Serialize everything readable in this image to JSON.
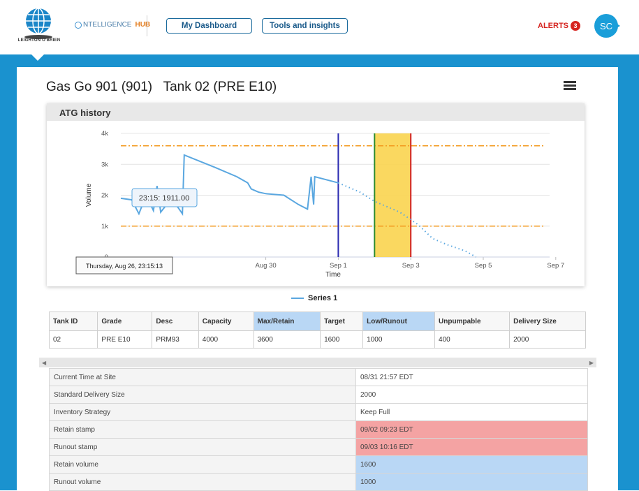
{
  "header": {
    "logo_text": "LEIGHTON O'BRIEN",
    "product_prefix": "NTELLIGENCE",
    "product_suffix": "HUB",
    "nav": [
      "My Dashboard",
      "Tools and insights"
    ],
    "alerts_label": "ALERTS",
    "alerts_count": "3",
    "avatar_initials": "SC"
  },
  "page": {
    "title": "Gas Go 901 (901)   Tank 02 (PRE E10)"
  },
  "chart_data": {
    "type": "line",
    "title": "ATG history",
    "ylabel": "Volume",
    "xlabel": "Time",
    "y_ticks": [
      "0",
      "1k",
      "2k",
      "3k",
      "4k"
    ],
    "x_ticks": [
      "Aug 30",
      "Sep 1",
      "Sep 3",
      "Sep 5",
      "Sep 7"
    ],
    "ylim": [
      0,
      4000
    ],
    "series": [
      {
        "name": "Series 1",
        "color": "#5aa7e0",
        "style": "solid"
      }
    ],
    "reference_lines": [
      {
        "value": 3600,
        "color": "#f39a1e",
        "style": "dash-dot"
      },
      {
        "value": 1000,
        "color": "#f39a1e",
        "style": "dash-dot"
      }
    ],
    "vertical_markers": [
      {
        "x": "Sep 1",
        "color": "#2b2bb0"
      },
      {
        "x": "Sep 2",
        "color": "#2e8b2e"
      },
      {
        "x": "Sep 3",
        "color": "#d01f1f"
      }
    ],
    "highlight_band": {
      "from": "Sep 2",
      "to": "Sep 3",
      "color": "#f9d44f"
    },
    "tooltip": "23:15: 1911.00",
    "crosshair_label": "Thursday, Aug 26, 23:15:13",
    "grid": true
  },
  "legend": {
    "label": "Series 1"
  },
  "summary_table": {
    "headers": [
      "Tank ID",
      "Grade",
      "Desc",
      "Capacity",
      "Max/Retain",
      "Target",
      "Low/Runout",
      "Unpumpable",
      "Delivery Size"
    ],
    "row": [
      "02",
      "PRE E10",
      "PRM93",
      "4000",
      "3600",
      "1600",
      "1000",
      "400",
      "2000"
    ]
  },
  "details": [
    {
      "label": "Current Time at Site",
      "value": "08/31 21:57 EDT",
      "tone": ""
    },
    {
      "label": "Standard Delivery Size",
      "value": "2000",
      "tone": ""
    },
    {
      "label": "Inventory Strategy",
      "value": "Keep Full",
      "tone": ""
    },
    {
      "label": "Retain stamp",
      "value": "09/02 09:23 EDT",
      "tone": "red"
    },
    {
      "label": "Runout stamp",
      "value": "09/03 10:16 EDT",
      "tone": "red"
    },
    {
      "label": "Retain volume",
      "value": "1600",
      "tone": "blue"
    },
    {
      "label": "Runout volume",
      "value": "1000",
      "tone": "blue"
    }
  ]
}
